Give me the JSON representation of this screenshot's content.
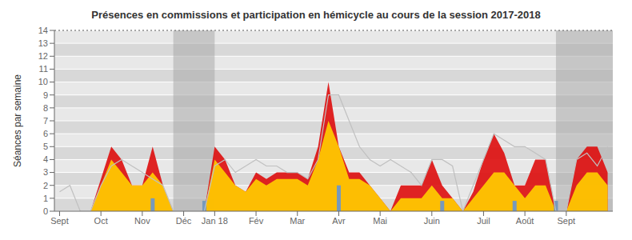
{
  "chart_data": {
    "type": "area",
    "title": "Présences en commissions et participation en hémicycle au cours de la session 2017-2018",
    "ylabel": "Séances par semaine",
    "x": [
      0,
      1,
      2,
      3,
      4,
      5,
      6,
      7,
      8,
      9,
      10,
      11,
      12,
      13,
      14,
      15,
      16,
      17,
      18,
      19,
      20,
      21,
      22,
      23,
      24,
      25,
      26,
      27,
      28,
      29,
      30,
      31,
      32,
      33,
      34,
      35,
      36,
      37,
      38,
      39,
      40,
      41,
      42,
      43,
      44,
      45,
      46,
      47,
      48,
      49,
      50,
      51,
      52,
      53
    ],
    "xlim": [
      -0.5,
      53.5
    ],
    "xticks": [
      {
        "value": 0,
        "label": "Sept"
      },
      {
        "value": 4,
        "label": "Oct"
      },
      {
        "value": 8,
        "label": "Nov"
      },
      {
        "value": 12,
        "label": "Déc"
      },
      {
        "value": 15,
        "label": "Jan 18"
      },
      {
        "value": 19,
        "label": "Fév"
      },
      {
        "value": 23,
        "label": "Mar"
      },
      {
        "value": 27,
        "label": "Avr"
      },
      {
        "value": 31,
        "label": "Mai"
      },
      {
        "value": 36,
        "label": "Juin"
      },
      {
        "value": 41,
        "label": "Juil"
      },
      {
        "value": 45,
        "label": "Août"
      },
      {
        "value": 49,
        "label": "Sept"
      }
    ],
    "ylim": [
      0,
      14
    ],
    "yticks": [
      0,
      1,
      2,
      3,
      4,
      5,
      6,
      7,
      8,
      9,
      10,
      11,
      12,
      13,
      14
    ],
    "grid": true,
    "series": [
      {
        "type": "line",
        "color": "#c0c0c0",
        "values": [
          1.5,
          2.0,
          0.0,
          0.0,
          2.0,
          3.5,
          4.0,
          3.5,
          3.0,
          2.5,
          2.0,
          0.0,
          0.0,
          0.0,
          0.0,
          3.5,
          4.0,
          3.0,
          3.5,
          4.0,
          3.5,
          3.5,
          3.0,
          3.0,
          2.5,
          4.0,
          9.0,
          9.0,
          7.0,
          5.0,
          4.0,
          3.5,
          4.0,
          3.5,
          3.0,
          2.0,
          4.0,
          4.0,
          3.5,
          0.0,
          2.0,
          4.0,
          6.0,
          5.5,
          5.0,
          5.0,
          4.5,
          4.0,
          0.0,
          0.0,
          4.0,
          4.5,
          3.5,
          5.0
        ]
      },
      {
        "type": "area",
        "color": "#dd1111",
        "values": [
          0.0,
          0.0,
          0.0,
          0.0,
          2.5,
          5.0,
          4.0,
          2.0,
          2.0,
          5.0,
          2.0,
          0.0,
          0.0,
          0.0,
          0.0,
          5.0,
          4.0,
          2.0,
          1.5,
          3.0,
          2.5,
          3.0,
          3.0,
          3.0,
          2.5,
          5.0,
          10.0,
          5.0,
          3.0,
          3.0,
          2.0,
          1.0,
          0.0,
          2.0,
          2.0,
          2.0,
          4.0,
          2.0,
          1.0,
          0.0,
          1.5,
          4.0,
          6.0,
          4.5,
          2.0,
          2.0,
          4.0,
          4.0,
          0.0,
          0.0,
          4.0,
          5.0,
          5.0,
          3.0
        ]
      },
      {
        "type": "area",
        "color": "#ffcc00",
        "values": [
          0.0,
          0.0,
          0.0,
          0.0,
          2.0,
          4.0,
          3.0,
          2.0,
          2.0,
          3.0,
          2.0,
          0.0,
          0.0,
          0.0,
          0.0,
          4.0,
          3.0,
          2.0,
          1.5,
          2.5,
          2.0,
          2.5,
          2.5,
          2.5,
          2.0,
          4.0,
          7.0,
          5.0,
          2.5,
          2.5,
          2.0,
          1.0,
          0.0,
          1.0,
          1.0,
          1.0,
          2.0,
          1.0,
          1.0,
          0.0,
          1.0,
          2.0,
          3.0,
          3.0,
          2.0,
          1.0,
          2.0,
          2.0,
          0.0,
          0.0,
          2.0,
          3.0,
          3.0,
          2.0
        ]
      },
      {
        "type": "bar",
        "color": "#7799bb",
        "x": [
          9,
          14,
          27,
          37,
          44,
          48
        ],
        "values": [
          1.0,
          0.8,
          2.0,
          0.8,
          0.8,
          0.8
        ]
      }
    ],
    "spans": [
      {
        "x_start": 11,
        "x_end": 15,
        "color": "#aaaaaa"
      },
      {
        "x_start": 48,
        "x_end": 54,
        "color": "#aaaaaa"
      }
    ],
    "reference_lines": [
      {
        "y": 14,
        "line_style": "dotted"
      }
    ]
  }
}
